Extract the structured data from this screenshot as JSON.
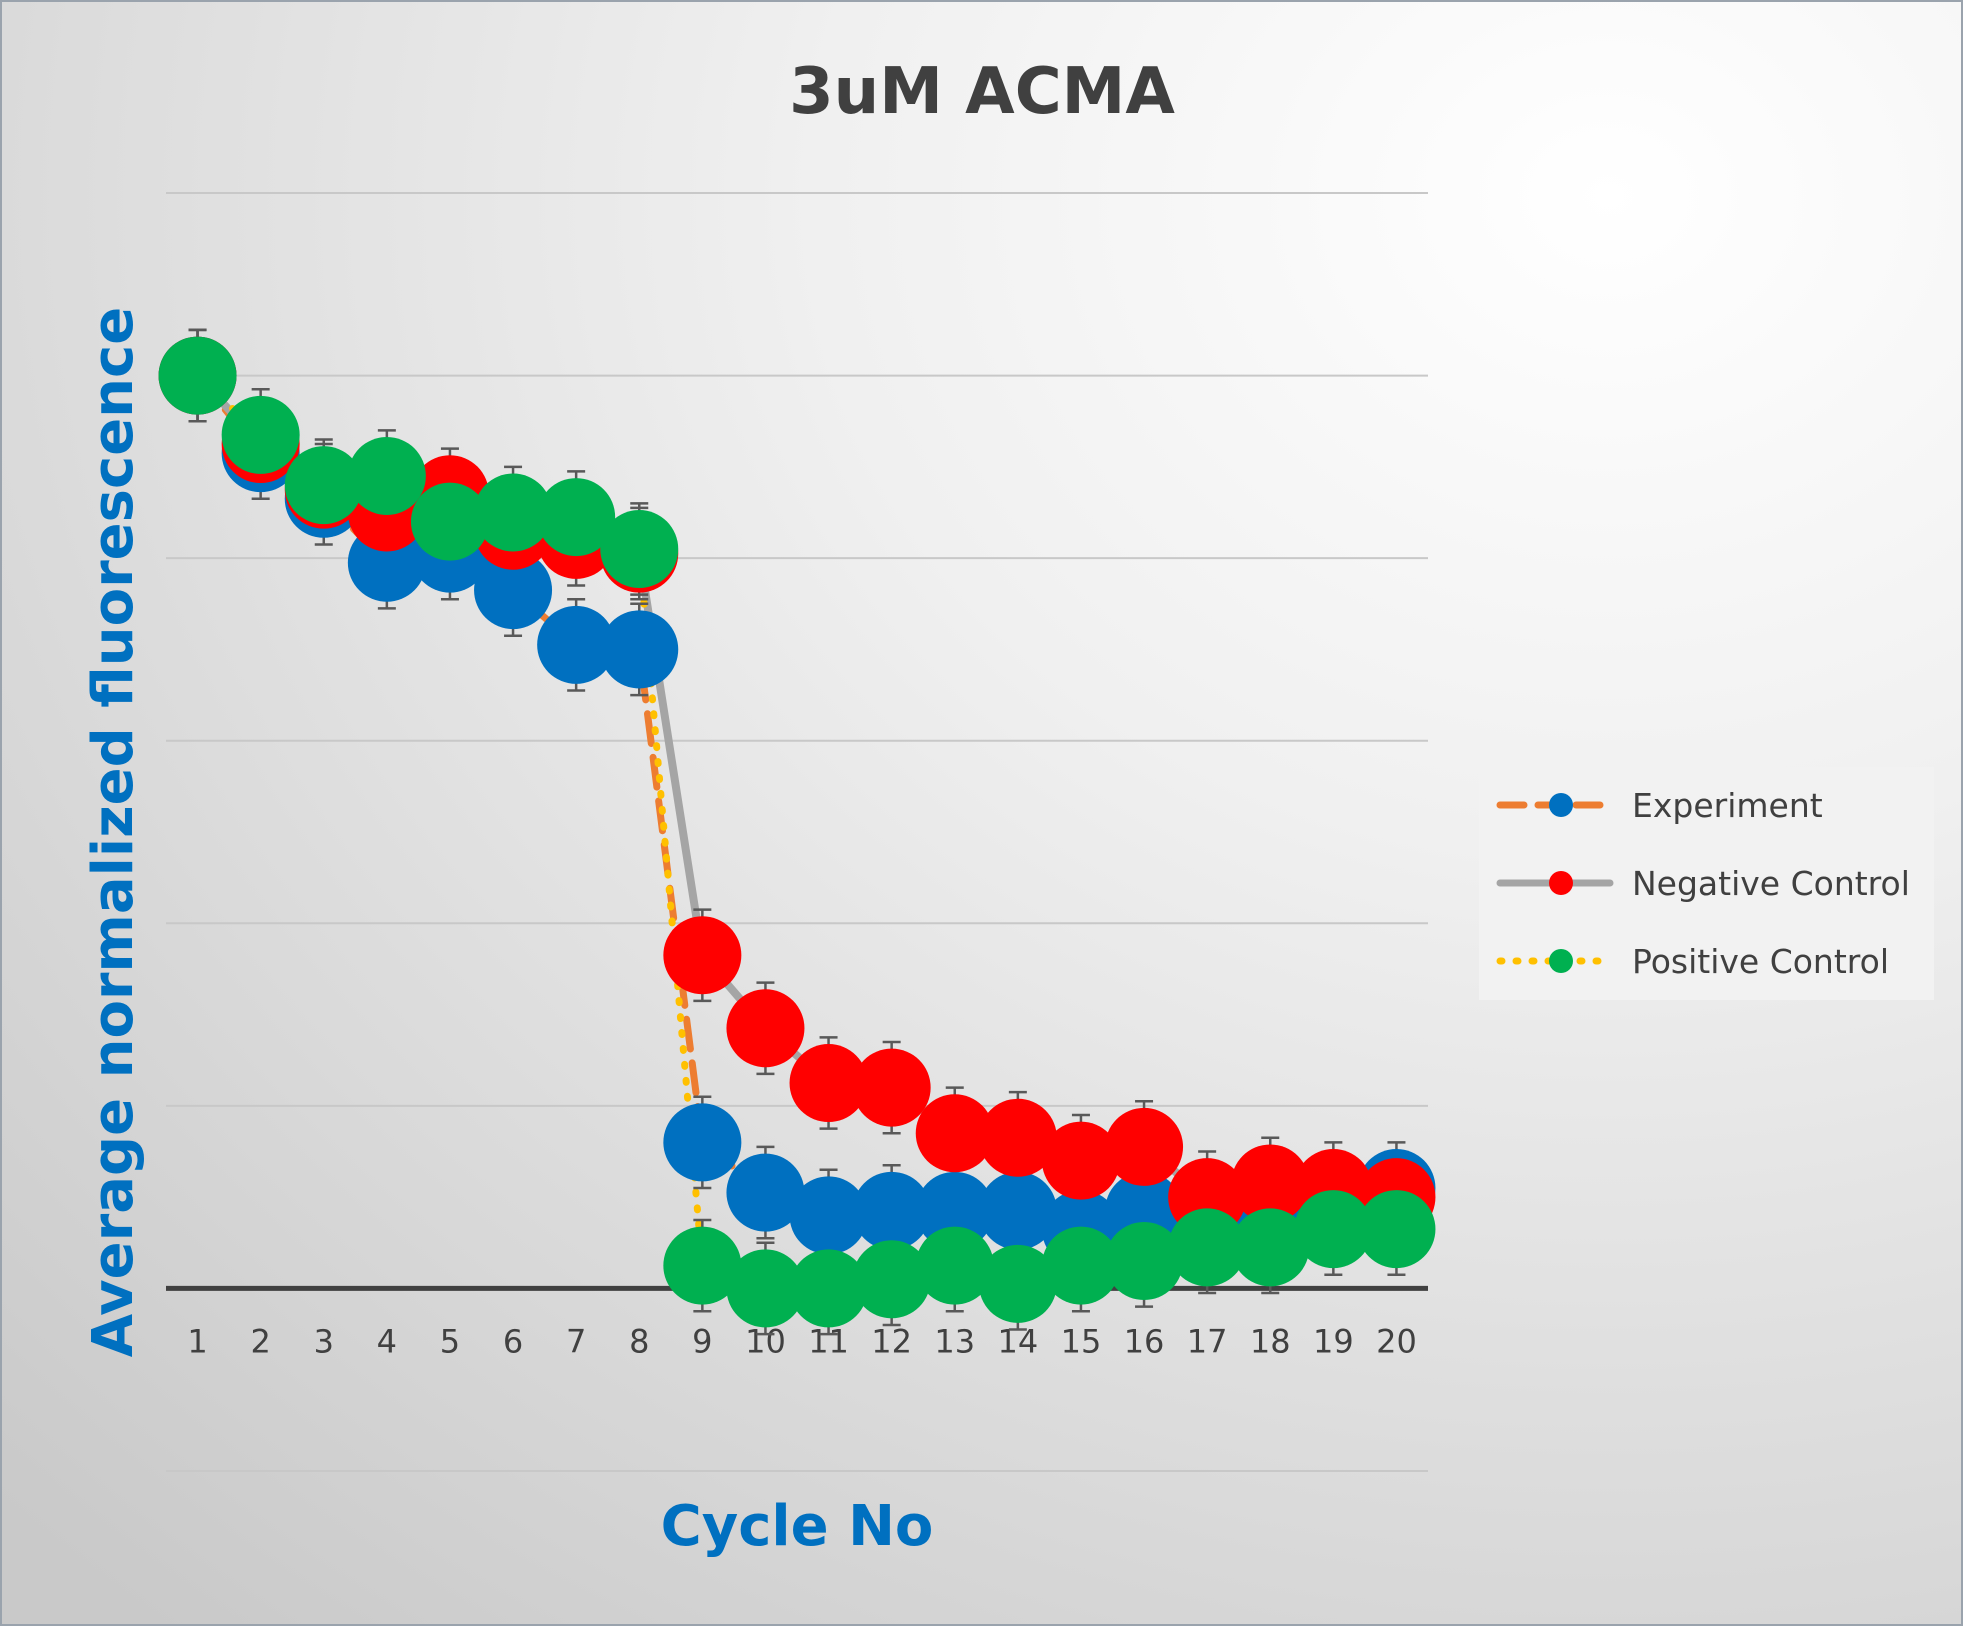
{
  "chart_data": {
    "type": "line",
    "title": "3uM ACMA",
    "xlabel": "Cycle No",
    "ylabel": "Average normalized fluorescence",
    "categories": [
      "1",
      "2",
      "3",
      "4",
      "5",
      "6",
      "7",
      "8",
      "9",
      "10",
      "11",
      "12",
      "13",
      "14",
      "15",
      "16",
      "17",
      "18",
      "19",
      "20"
    ],
    "ylim": [
      -0.2,
      1.2
    ],
    "grid": true,
    "legend_position": "right",
    "series": [
      {
        "name": "Experiment",
        "line_color": "#ED7D31",
        "marker_color": "#0070C0",
        "line_style": "dashed",
        "values": [
          1.0,
          0.915,
          0.865,
          0.795,
          0.805,
          0.765,
          0.705,
          0.7,
          0.16,
          0.105,
          0.08,
          0.085,
          0.085,
          0.085,
          0.065,
          0.085,
          0.06,
          0.085,
          0.085,
          0.11
        ],
        "errors": [
          0.05,
          0.05,
          0.05,
          0.05,
          0.05,
          0.05,
          0.05,
          0.05,
          0.05,
          0.05,
          0.05,
          0.05,
          0.05,
          0.05,
          0.05,
          0.05,
          0.05,
          0.05,
          0.05,
          0.05
        ]
      },
      {
        "name": "Negative Control",
        "line_color": "#A5A5A5",
        "marker_color": "#FF0000",
        "line_style": "solid",
        "values": [
          1.0,
          0.925,
          0.875,
          0.85,
          0.87,
          0.83,
          0.82,
          0.805,
          0.365,
          0.285,
          0.225,
          0.22,
          0.17,
          0.165,
          0.14,
          0.155,
          0.1,
          0.115,
          0.11,
          0.1
        ],
        "errors": [
          0.05,
          0.05,
          0.05,
          0.05,
          0.05,
          0.05,
          0.05,
          0.05,
          0.05,
          0.05,
          0.05,
          0.05,
          0.05,
          0.05,
          0.05,
          0.05,
          0.05,
          0.05,
          0.05,
          0.05
        ]
      },
      {
        "name": "Positive Control",
        "line_color": "#FFC000",
        "marker_color": "#00B050",
        "line_style": "dotted",
        "values": [
          1.0,
          0.935,
          0.88,
          0.89,
          0.84,
          0.85,
          0.845,
          0.81,
          0.025,
          0.0,
          0.0,
          0.01,
          0.025,
          0.005,
          0.025,
          0.03,
          0.045,
          0.045,
          0.065,
          0.065
        ],
        "errors": [
          0.05,
          0.05,
          0.05,
          0.05,
          0.05,
          0.05,
          0.05,
          0.05,
          0.05,
          0.05,
          0.05,
          0.05,
          0.05,
          0.05,
          0.05,
          0.05,
          0.05,
          0.05,
          0.05,
          0.05
        ]
      }
    ]
  }
}
